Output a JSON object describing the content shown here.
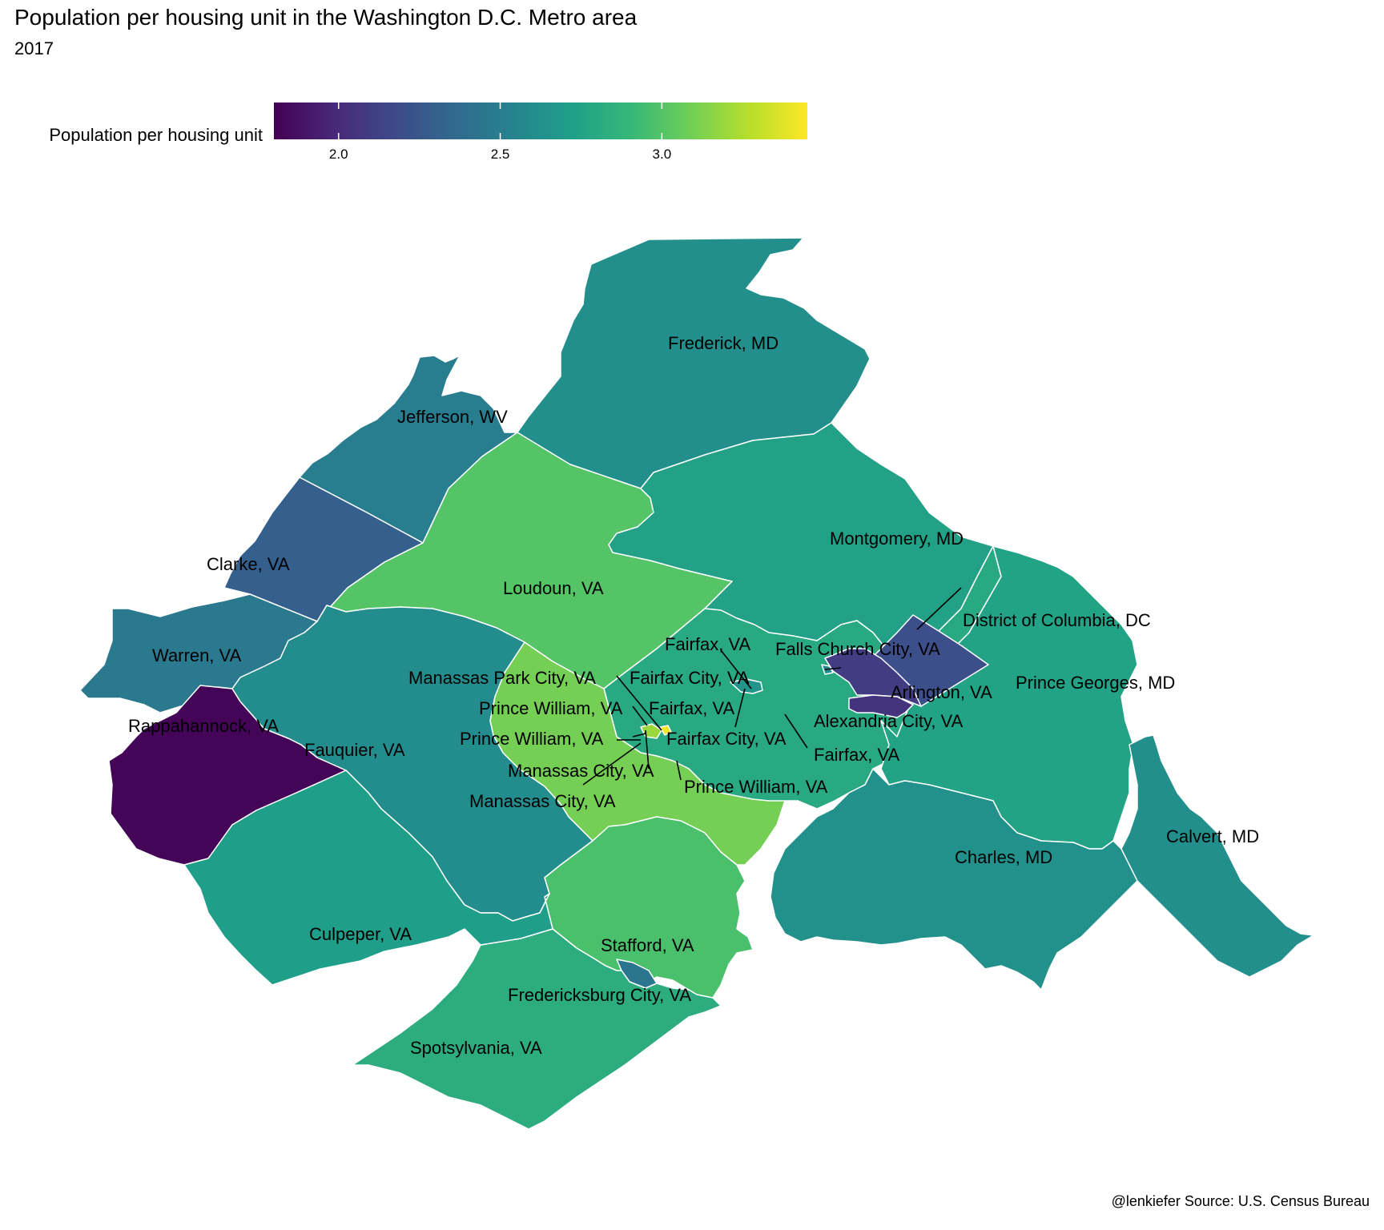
{
  "title": "Population per housing unit in the Washington D.C. Metro area",
  "subtitle": "2017",
  "caption": "@lenkiefer Source: U.S. Census Bureau",
  "legend": {
    "title": "Population per housing unit",
    "min": 1.8,
    "max": 3.45,
    "ticks": [
      "2.0",
      "2.5",
      "3.0"
    ],
    "tick_values": [
      2.0,
      2.5,
      3.0
    ],
    "palette": [
      "#440154",
      "#482878",
      "#3e4989",
      "#31688e",
      "#26828e",
      "#1f9e89",
      "#35b779",
      "#6ece58",
      "#b5de2b",
      "#fde725"
    ]
  },
  "regions": [
    {
      "name": "Frederick, MD",
      "value": 2.62
    },
    {
      "name": "Jefferson, WV",
      "value": 2.5
    },
    {
      "name": "Clarke, VA",
      "value": 2.3
    },
    {
      "name": "Loudoun, VA",
      "value": 3.0
    },
    {
      "name": "Montgomery, MD",
      "value": 2.74
    },
    {
      "name": "Warren, VA",
      "value": 2.47
    },
    {
      "name": "Rappahannock, VA",
      "value": 1.82
    },
    {
      "name": "Fauquier, VA",
      "value": 2.6
    },
    {
      "name": "Fairfax, VA",
      "value": 2.8
    },
    {
      "name": "Prince William, VA",
      "value": 3.1
    },
    {
      "name": "Prince Georges, MD",
      "value": 2.75
    },
    {
      "name": "District of Columbia, DC",
      "value": 2.2
    },
    {
      "name": "Arlington, VA",
      "value": 2.1
    },
    {
      "name": "Alexandria City, VA",
      "value": 2.05
    },
    {
      "name": "Falls Church City, VA",
      "value": 2.58
    },
    {
      "name": "Fairfax City, VA",
      "value": 2.65
    },
    {
      "name": "Manassas City, VA",
      "value": 3.2
    },
    {
      "name": "Manassas Park City, VA",
      "value": 3.42
    },
    {
      "name": "Stafford, VA",
      "value": 2.97
    },
    {
      "name": "Fredericksburg City, VA",
      "value": 2.45
    },
    {
      "name": "Spotsylvania, VA",
      "value": 2.83
    },
    {
      "name": "Culpeper, VA",
      "value": 2.72
    },
    {
      "name": "Charles, MD",
      "value": 2.63
    },
    {
      "name": "Calvert, MD",
      "value": 2.62
    }
  ],
  "labels": [
    {
      "text": "Frederick, MD"
    },
    {
      "text": "Jefferson, WV"
    },
    {
      "text": "Clarke, VA"
    },
    {
      "text": "Loudoun, VA"
    },
    {
      "text": "Montgomery, MD"
    },
    {
      "text": "Warren, VA"
    },
    {
      "text": "Rappahannock, VA"
    },
    {
      "text": "Fauquier, VA"
    },
    {
      "text": "District of Columbia, DC"
    },
    {
      "text": "Fairfax, VA"
    },
    {
      "text": "Falls Church City, VA"
    },
    {
      "text": "Manassas Park City, VA"
    },
    {
      "text": "Fairfax City, VA"
    },
    {
      "text": "Arlington, VA"
    },
    {
      "text": "Prince Georges, MD"
    },
    {
      "text": "Prince William, VA"
    },
    {
      "text": "Fairfax, VA"
    },
    {
      "text": "Alexandria City, VA"
    },
    {
      "text": "Prince William, VA"
    },
    {
      "text": "Fairfax City, VA"
    },
    {
      "text": "Fairfax, VA"
    },
    {
      "text": "Manassas City, VA"
    },
    {
      "text": "Prince William, VA"
    },
    {
      "text": "Manassas City, VA"
    },
    {
      "text": "Calvert, MD"
    },
    {
      "text": "Charles, MD"
    },
    {
      "text": "Culpeper, VA"
    },
    {
      "text": "Stafford, VA"
    },
    {
      "text": "Fredericksburg City, VA"
    },
    {
      "text": "Spotsylvania, VA"
    }
  ]
}
